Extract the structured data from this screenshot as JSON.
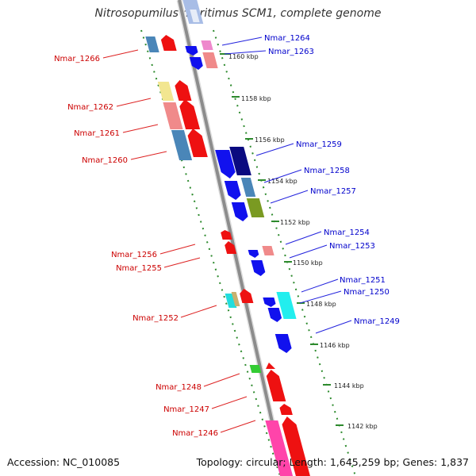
{
  "title": "Nitrosopumilus maritimus SCM1, complete genome",
  "accession": "Accession: NC_010085",
  "summary": "Topology: circular; Length: 1,645,259 bp; Genes: 1,837",
  "colors": {
    "backbone": "#8c8c8c",
    "track_dots": "#2d8a2d",
    "label_reverse": "#cc0000",
    "label_forward": "#0000cc",
    "leader_reverse": "#dd2222",
    "leader_forward": "#2222dd"
  },
  "ticks": [
    {
      "label": "1160 kbp"
    },
    {
      "label": "1158 kbp"
    },
    {
      "label": "1156 kbp"
    },
    {
      "label": "1154 kbp"
    },
    {
      "label": "1152 kbp"
    },
    {
      "label": "1150 kbp"
    },
    {
      "label": "1148 kbp"
    },
    {
      "label": "1146 kbp"
    },
    {
      "label": "1144 kbp"
    },
    {
      "label": "1142 kbp"
    }
  ],
  "gene_labels": [
    {
      "text": "Nmar_1264",
      "strand": "forward"
    },
    {
      "text": "Nmar_1263",
      "strand": "forward"
    },
    {
      "text": "Nmar_1266",
      "strand": "reverse"
    },
    {
      "text": "Nmar_1262",
      "strand": "reverse"
    },
    {
      "text": "Nmar_1261",
      "strand": "reverse"
    },
    {
      "text": "Nmar_1260",
      "strand": "reverse"
    },
    {
      "text": "Nmar_1259",
      "strand": "forward"
    },
    {
      "text": "Nmar_1258",
      "strand": "forward"
    },
    {
      "text": "Nmar_1257",
      "strand": "forward"
    },
    {
      "text": "Nmar_1254",
      "strand": "forward"
    },
    {
      "text": "Nmar_1253",
      "strand": "forward"
    },
    {
      "text": "Nmar_1256",
      "strand": "reverse"
    },
    {
      "text": "Nmar_1255",
      "strand": "reverse"
    },
    {
      "text": "Nmar_1251",
      "strand": "forward"
    },
    {
      "text": "Nmar_1250",
      "strand": "forward"
    },
    {
      "text": "Nmar_1252",
      "strand": "reverse"
    },
    {
      "text": "Nmar_1249",
      "strand": "forward"
    },
    {
      "text": "Nmar_1248",
      "strand": "reverse"
    },
    {
      "text": "Nmar_1247",
      "strand": "reverse"
    },
    {
      "text": "Nmar_1246",
      "strand": "reverse"
    }
  ]
}
